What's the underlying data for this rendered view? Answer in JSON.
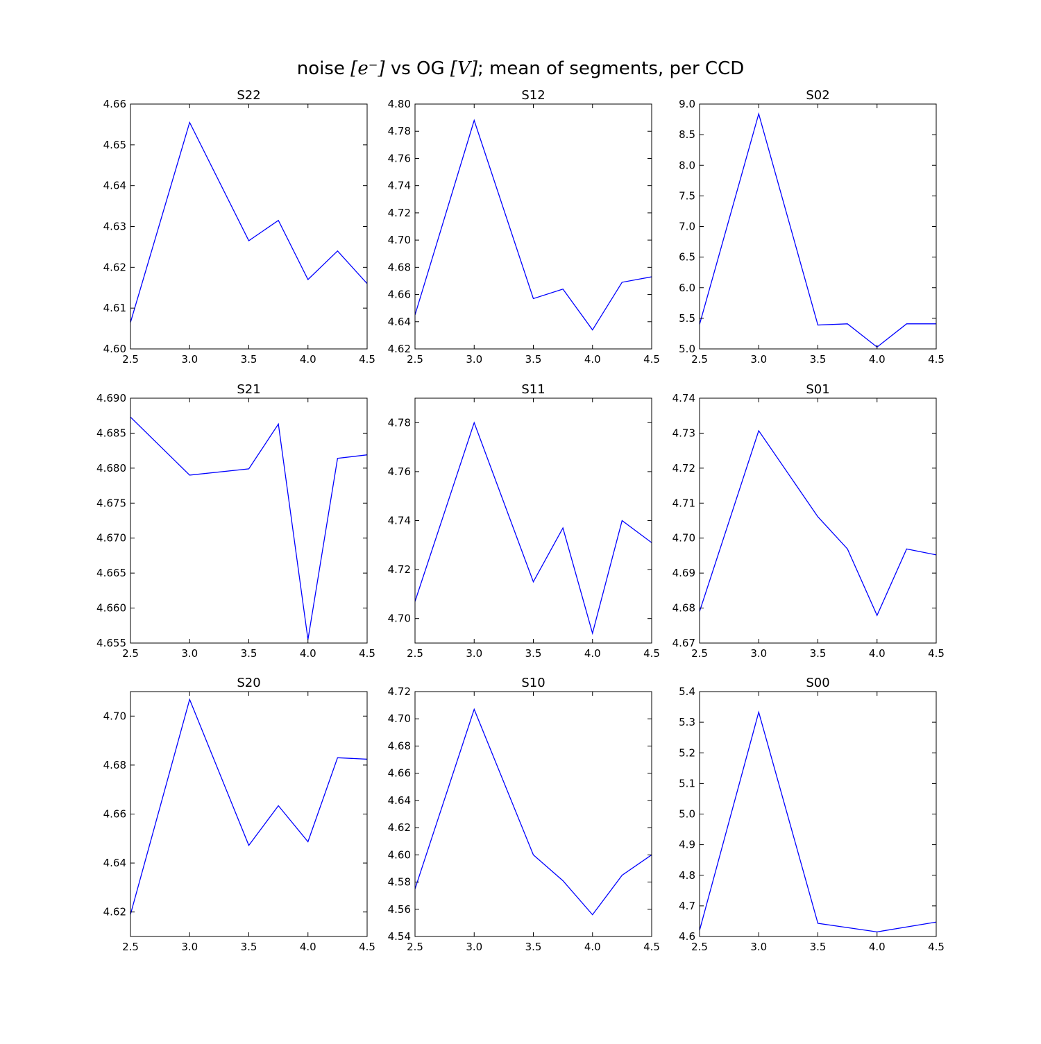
{
  "figure": {
    "title_prefix": "noise ",
    "title_math_1": "[e⁻]",
    "title_middle": " vs OG ",
    "title_math_2": "[V]",
    "title_suffix": "; mean of segments, per CCD"
  },
  "chart_data": [
    {
      "type": "line",
      "title": "S22",
      "xlabel": "",
      "ylabel": "",
      "xlim": [
        2.5,
        4.5
      ],
      "ylim": [
        4.6,
        4.66
      ],
      "xticks": [
        "2.5",
        "3.0",
        "3.5",
        "4.0",
        "4.5"
      ],
      "yticks": [
        "4.60",
        "4.61",
        "4.62",
        "4.63",
        "4.64",
        "4.65",
        "4.66"
      ],
      "x": [
        2.5,
        3.0,
        3.5,
        3.75,
        4.0,
        4.25,
        4.5
      ],
      "y": [
        4.6065,
        4.6555,
        4.6265,
        4.6315,
        4.617,
        4.624,
        4.616
      ],
      "color": "#0000ff"
    },
    {
      "type": "line",
      "title": "S12",
      "xlabel": "",
      "ylabel": "",
      "xlim": [
        2.5,
        4.5
      ],
      "ylim": [
        4.62,
        4.8
      ],
      "xticks": [
        "2.5",
        "3.0",
        "3.5",
        "4.0",
        "4.5"
      ],
      "yticks": [
        "4.62",
        "4.64",
        "4.66",
        "4.68",
        "4.70",
        "4.72",
        "4.74",
        "4.76",
        "4.78",
        "4.80"
      ],
      "x": [
        2.5,
        3.0,
        3.5,
        3.75,
        4.0,
        4.25,
        4.5
      ],
      "y": [
        4.645,
        4.788,
        4.657,
        4.664,
        4.634,
        4.669,
        4.673
      ],
      "color": "#0000ff"
    },
    {
      "type": "line",
      "title": "S02",
      "xlabel": "",
      "ylabel": "",
      "xlim": [
        2.5,
        4.5
      ],
      "ylim": [
        5.0,
        9.0
      ],
      "xticks": [
        "2.5",
        "3.0",
        "3.5",
        "4.0",
        "4.5"
      ],
      "yticks": [
        "5.0",
        "5.5",
        "6.0",
        "6.5",
        "7.0",
        "7.5",
        "8.0",
        "8.5",
        "9.0"
      ],
      "x": [
        2.5,
        3.0,
        3.5,
        3.75,
        4.0,
        4.25,
        4.5
      ],
      "y": [
        5.4,
        8.84,
        5.39,
        5.41,
        5.03,
        5.41,
        5.41
      ],
      "color": "#0000ff"
    },
    {
      "type": "line",
      "title": "S21",
      "xlabel": "",
      "ylabel": "",
      "xlim": [
        2.5,
        4.5
      ],
      "ylim": [
        4.655,
        4.69
      ],
      "xticks": [
        "2.5",
        "3.0",
        "3.5",
        "4.0",
        "4.5"
      ],
      "yticks": [
        "4.655",
        "4.660",
        "4.665",
        "4.670",
        "4.675",
        "4.680",
        "4.685",
        "4.690"
      ],
      "x": [
        2.5,
        3.0,
        3.5,
        3.75,
        4.0,
        4.25,
        4.5
      ],
      "y": [
        4.6873,
        4.679,
        4.6799,
        4.6863,
        4.6555,
        4.6814,
        4.6819
      ],
      "color": "#0000ff"
    },
    {
      "type": "line",
      "title": "S11",
      "xlabel": "",
      "ylabel": "",
      "xlim": [
        2.5,
        4.5
      ],
      "ylim": [
        4.69,
        4.79
      ],
      "xticks": [
        "2.5",
        "3.0",
        "3.5",
        "4.0",
        "4.5"
      ],
      "yticks": [
        "4.70",
        "4.72",
        "4.74",
        "4.76",
        "4.78"
      ],
      "x": [
        2.5,
        3.0,
        3.5,
        3.75,
        4.0,
        4.25,
        4.5
      ],
      "y": [
        4.707,
        4.78,
        4.715,
        4.737,
        4.694,
        4.74,
        4.731
      ],
      "color": "#0000ff"
    },
    {
      "type": "line",
      "title": "S01",
      "xlabel": "",
      "ylabel": "",
      "xlim": [
        2.5,
        4.5
      ],
      "ylim": [
        4.67,
        4.74
      ],
      "xticks": [
        "2.5",
        "3.0",
        "3.5",
        "4.0",
        "4.5"
      ],
      "yticks": [
        "4.67",
        "4.68",
        "4.69",
        "4.70",
        "4.71",
        "4.72",
        "4.73",
        "4.74"
      ],
      "x": [
        2.5,
        3.0,
        3.5,
        3.75,
        4.0,
        4.25,
        4.5
      ],
      "y": [
        4.679,
        4.7307,
        4.7061,
        4.6969,
        4.6779,
        4.6969,
        4.6952
      ],
      "color": "#0000ff"
    },
    {
      "type": "line",
      "title": "S20",
      "xlabel": "",
      "ylabel": "",
      "xlim": [
        2.5,
        4.5
      ],
      "ylim": [
        4.61,
        4.71
      ],
      "xticks": [
        "2.5",
        "3.0",
        "3.5",
        "4.0",
        "4.5"
      ],
      "yticks": [
        "4.62",
        "4.64",
        "4.66",
        "4.68",
        "4.70"
      ],
      "x": [
        2.5,
        3.0,
        3.5,
        3.75,
        4.0,
        4.25,
        4.5
      ],
      "y": [
        4.619,
        4.7068,
        4.6472,
        4.6634,
        4.6487,
        4.683,
        4.6824
      ],
      "color": "#0000ff"
    },
    {
      "type": "line",
      "title": "S10",
      "xlabel": "",
      "ylabel": "",
      "xlim": [
        2.5,
        4.5
      ],
      "ylim": [
        4.54,
        4.72
      ],
      "xticks": [
        "2.5",
        "3.0",
        "3.5",
        "4.0",
        "4.5"
      ],
      "yticks": [
        "4.54",
        "4.56",
        "4.58",
        "4.60",
        "4.62",
        "4.64",
        "4.66",
        "4.68",
        "4.70",
        "4.72"
      ],
      "x": [
        2.5,
        3.0,
        3.5,
        3.75,
        4.0,
        4.25,
        4.5
      ],
      "y": [
        4.575,
        4.707,
        4.6,
        4.581,
        4.556,
        4.585,
        4.6
      ],
      "color": "#0000ff"
    },
    {
      "type": "line",
      "title": "S00",
      "xlabel": "",
      "ylabel": "",
      "xlim": [
        2.5,
        4.5
      ],
      "ylim": [
        4.6,
        5.4
      ],
      "xticks": [
        "2.5",
        "3.0",
        "3.5",
        "4.0",
        "4.5"
      ],
      "yticks": [
        "4.6",
        "4.7",
        "4.8",
        "4.9",
        "5.0",
        "5.1",
        "5.2",
        "5.3",
        "5.4"
      ],
      "x": [
        2.5,
        3.0,
        3.5,
        4.0,
        4.5
      ],
      "y": [
        4.62,
        5.333,
        4.643,
        4.615,
        4.647
      ],
      "color": "#0000ff"
    }
  ]
}
